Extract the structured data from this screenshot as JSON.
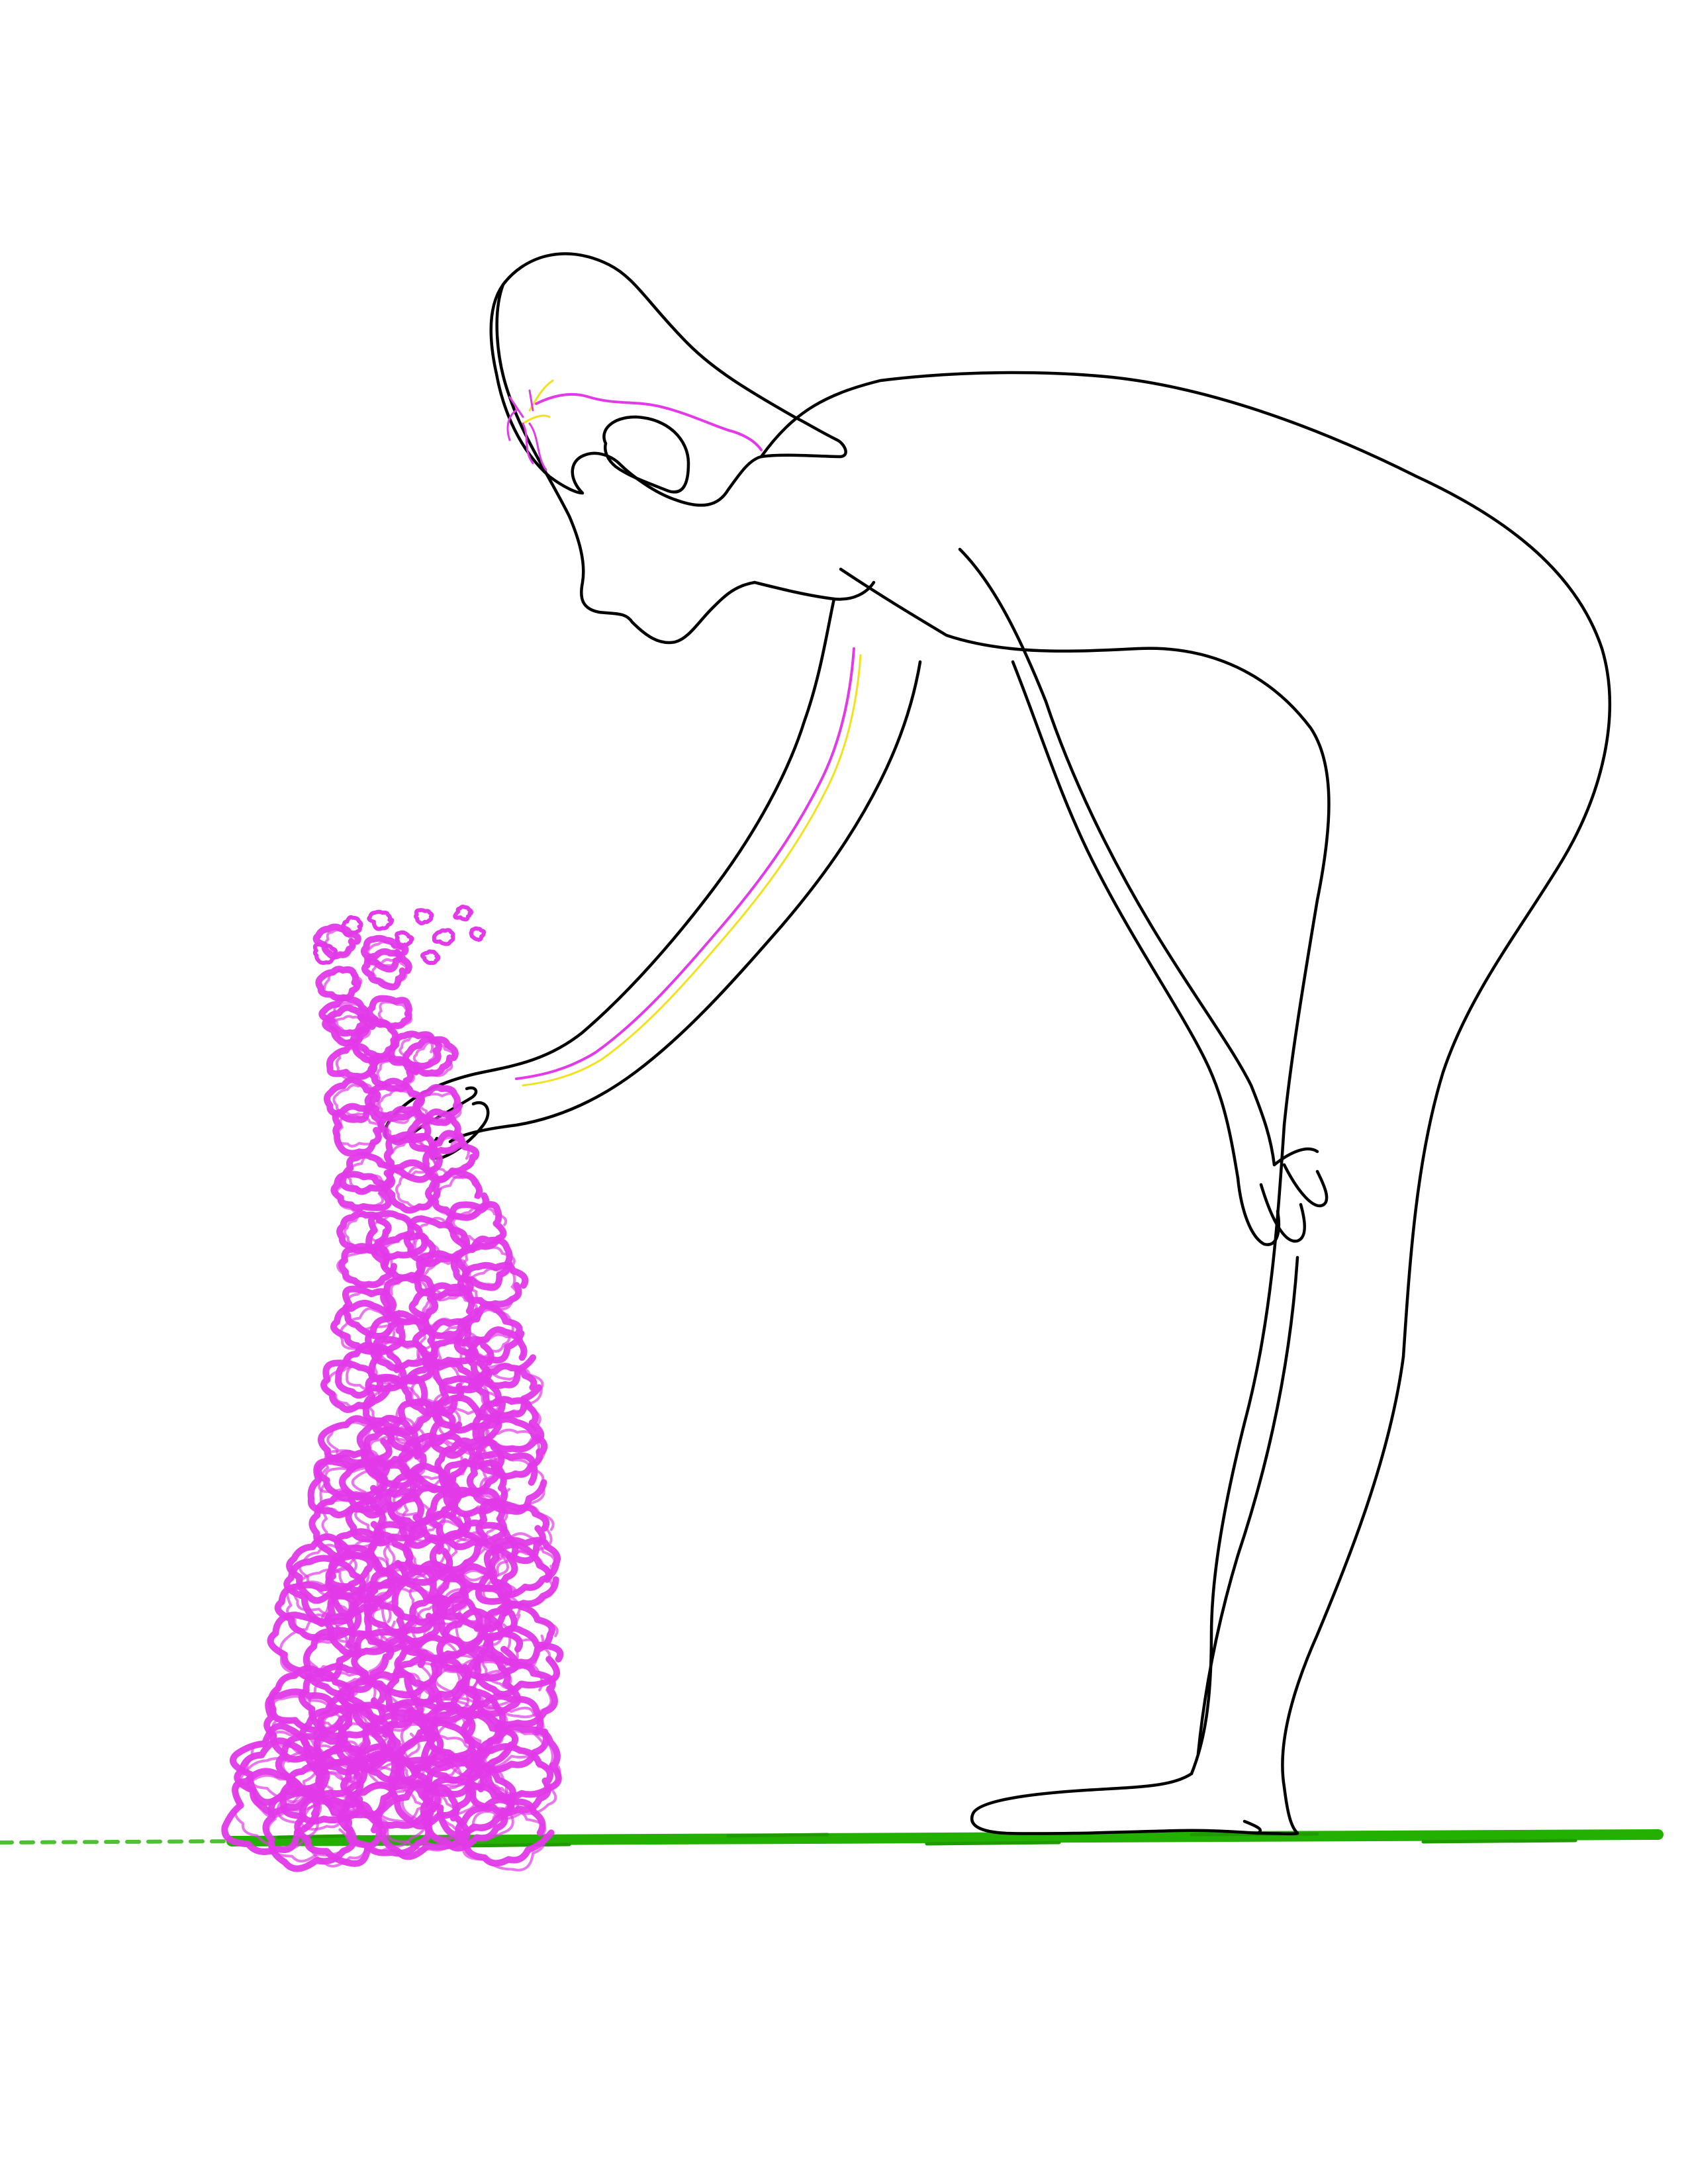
{
  "scene": {
    "description_tags": [
      "figure-outline",
      "foxglove-flower",
      "grass-line",
      "nerve-lines"
    ],
    "colors": {
      "background": "#ffffff",
      "outline": "#000000",
      "flower": "#e23ae8",
      "nerve_primary": "#e23ae8",
      "nerve_secondary": "#f2e21a",
      "ground": "#23b000"
    }
  }
}
